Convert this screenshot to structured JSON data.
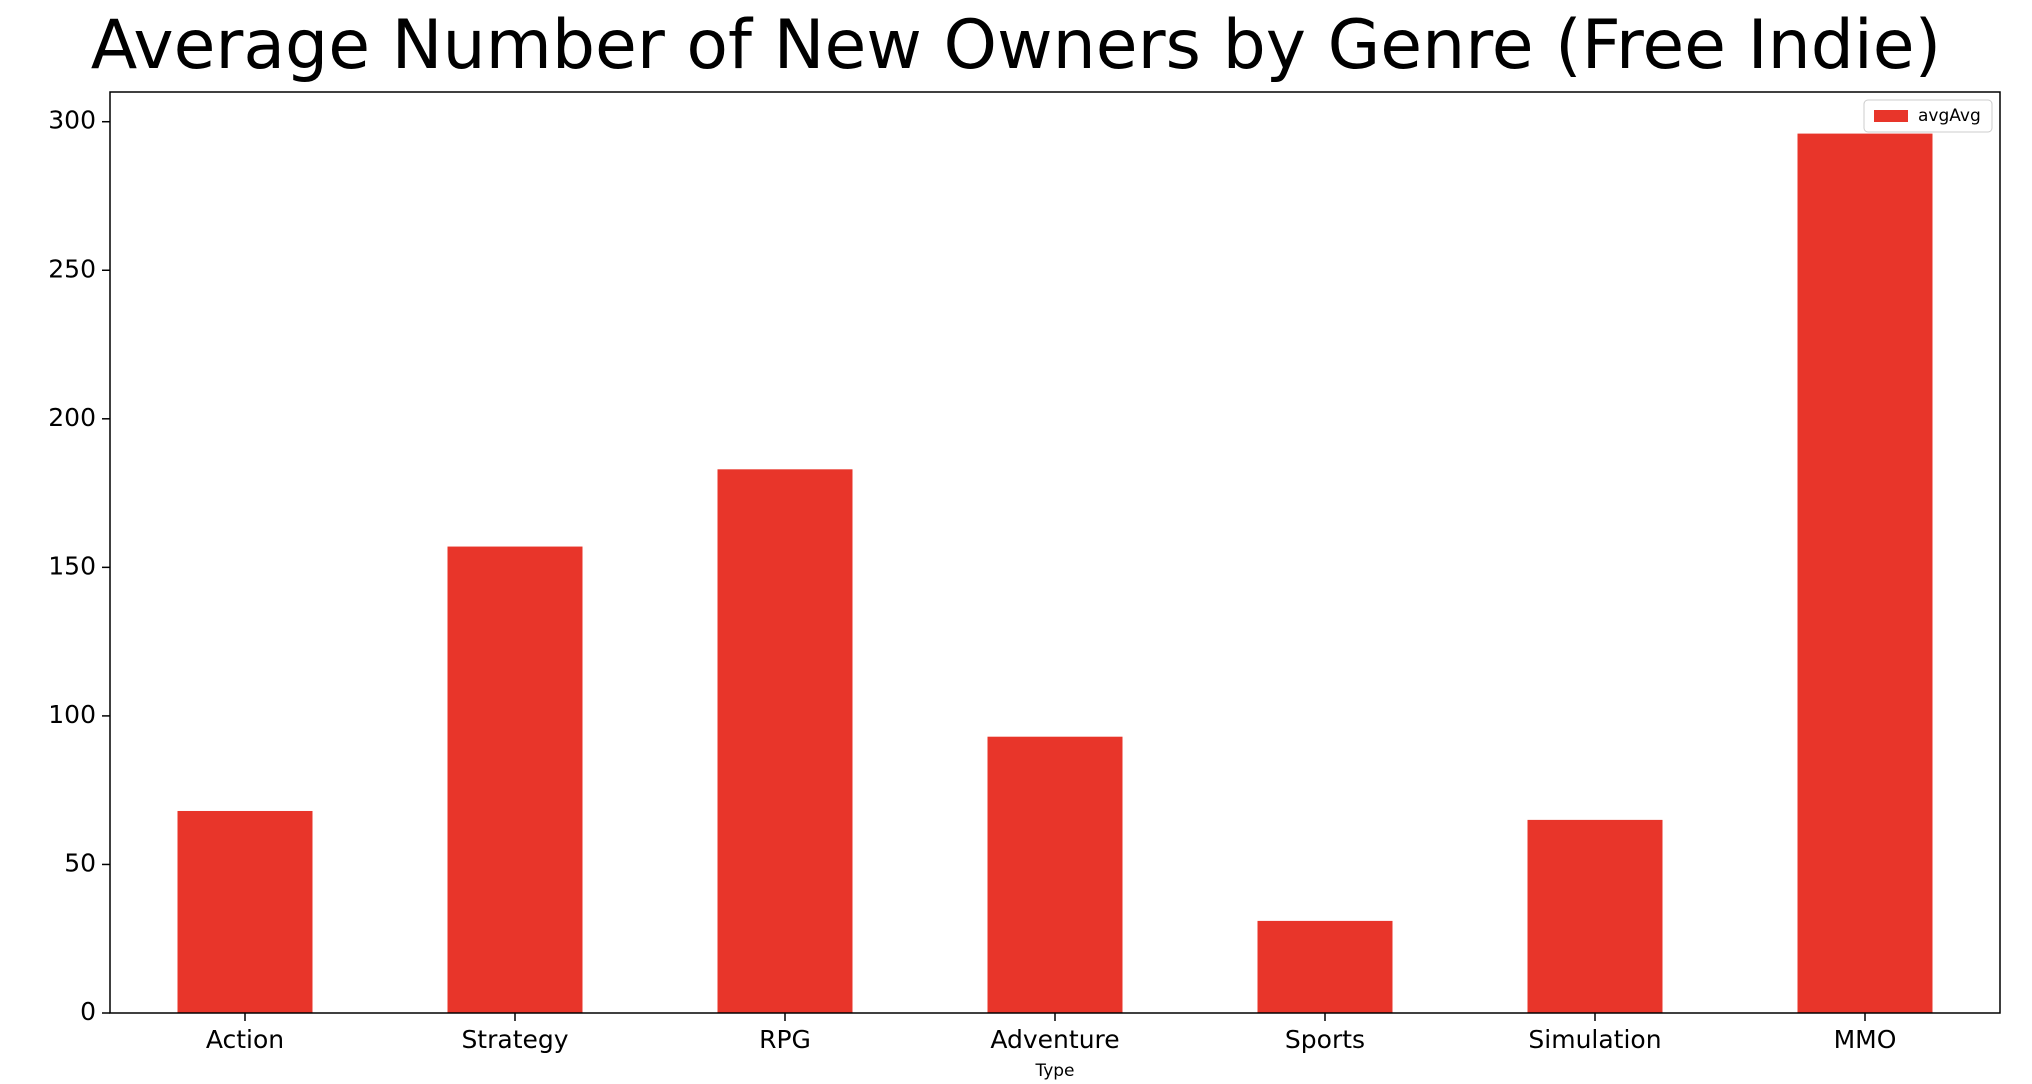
{
  "chart_data": {
    "type": "bar",
    "title": "Average Number of New Owners by Genre (Free Indie)",
    "xlabel": "Type",
    "ylabel": "",
    "categories": [
      "Action",
      "Strategy",
      "RPG",
      "Adventure",
      "Sports",
      "Simulation",
      "MMO"
    ],
    "series": [
      {
        "name": "avgAvg",
        "values": [
          68,
          157,
          183,
          93,
          31,
          65,
          296
        ],
        "color": "#e8352a"
      }
    ],
    "ylim": [
      0,
      310
    ],
    "yticks": [
      0,
      50,
      100,
      150,
      200,
      250,
      300
    ],
    "grid": false,
    "legend_position": "top-right"
  }
}
